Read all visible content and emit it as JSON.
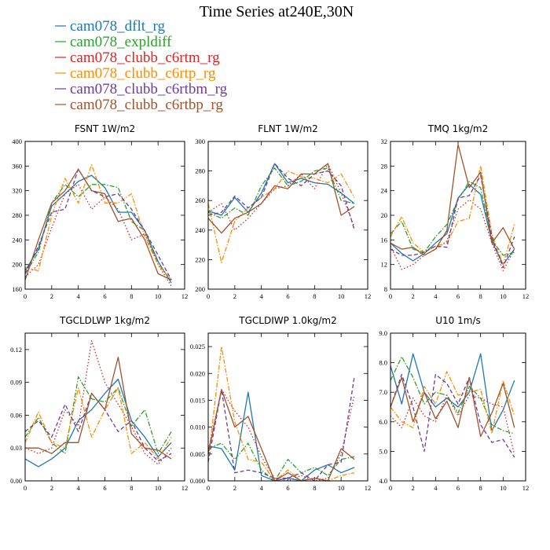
{
  "figure_title": "Time Series at240E,30N",
  "legend": [
    {
      "name": "cam078_dflt_rg",
      "color": "#1f77b4",
      "dash": "solid"
    },
    {
      "name": "cam078_expldiff",
      "color": "#2ca02c",
      "dash": "dashdot"
    },
    {
      "name": "cam078_clubb_c6rtm_rg",
      "color": "#d62728",
      "dash": "dot"
    },
    {
      "name": "cam078_clubb_c6rtp_rg",
      "color": "#ff8c00",
      "dash": "dashdot"
    },
    {
      "name": "cam078_clubb_c6rtbm_rg",
      "color": "#6a3d9a",
      "dash": "dash"
    },
    {
      "name": "cam078_clubb_c6rtbp_rg",
      "color": "#a0522d",
      "dash": "solid"
    }
  ],
  "chart_data": [
    {
      "type": "line",
      "title": "FSNT  1W/m2",
      "xlim": [
        0,
        12
      ],
      "ylim": [
        160,
        400
      ],
      "xticks": [
        0,
        2,
        4,
        6,
        8,
        10,
        12
      ],
      "yticks": [
        160,
        200,
        240,
        280,
        320,
        360,
        400
      ],
      "ytick_labels": [
        "160",
        "200",
        "240",
        "280",
        "320",
        "360",
        "400"
      ],
      "x": [
        0,
        1,
        2,
        3,
        4,
        5,
        6,
        7,
        8,
        9,
        10,
        11
      ],
      "series": [
        {
          "name": "cam078_dflt_rg",
          "values": [
            190,
            225,
            295,
            315,
            335,
            345,
            325,
            285,
            285,
            255,
            205,
            170
          ]
        },
        {
          "name": "cam078_expldiff",
          "values": [
            185,
            220,
            300,
            330,
            310,
            330,
            330,
            325,
            270,
            255,
            200,
            175
          ]
        },
        {
          "name": "cam078_clubb_c6rtm_rg",
          "values": [
            180,
            200,
            260,
            315,
            330,
            290,
            310,
            290,
            240,
            250,
            200,
            165
          ]
        },
        {
          "name": "cam078_clubb_c6rtp_rg",
          "values": [
            195,
            190,
            280,
            340,
            300,
            362,
            300,
            300,
            315,
            245,
            200,
            175
          ]
        },
        {
          "name": "cam078_clubb_c6rtbm_rg",
          "values": [
            185,
            230,
            285,
            290,
            355,
            320,
            310,
            315,
            290,
            255,
            215,
            175
          ]
        },
        {
          "name": "cam078_clubb_c6rtbp_rg",
          "values": [
            175,
            240,
            300,
            320,
            355,
            320,
            315,
            270,
            275,
            240,
            185,
            175
          ]
        }
      ]
    },
    {
      "type": "line",
      "title": "FLNT  1W/m2",
      "xlim": [
        0,
        12
      ],
      "ylim": [
        200,
        300
      ],
      "xticks": [
        0,
        2,
        4,
        6,
        8,
        10,
        12
      ],
      "yticks": [
        200,
        220,
        240,
        260,
        280,
        300
      ],
      "ytick_labels": [
        "200",
        "220",
        "240",
        "260",
        "280",
        "300"
      ],
      "x": [
        0,
        1,
        2,
        3,
        4,
        5,
        6,
        7,
        8,
        9,
        10,
        11
      ],
      "series": [
        {
          "name": "cam078_dflt_rg",
          "values": [
            253,
            250,
            262,
            252,
            265,
            285,
            272,
            275,
            272,
            271,
            265,
            258
          ]
        },
        {
          "name": "cam078_expldiff",
          "values": [
            252,
            248,
            255,
            250,
            270,
            282,
            270,
            273,
            280,
            282,
            260,
            258
          ]
        },
        {
          "name": "cam078_clubb_c6rtm_rg",
          "values": [
            252,
            258,
            240,
            248,
            258,
            268,
            270,
            278,
            268,
            285,
            265,
            242
          ]
        },
        {
          "name": "cam078_clubb_c6rtp_rg",
          "values": [
            258,
            218,
            246,
            255,
            262,
            268,
            280,
            276,
            275,
            272,
            278,
            262
          ]
        },
        {
          "name": "cam078_clubb_c6rtbm_rg",
          "values": [
            250,
            252,
            263,
            255,
            262,
            285,
            275,
            270,
            278,
            280,
            270,
            240
          ]
        },
        {
          "name": "cam078_clubb_c6rtbp_rg",
          "values": [
            248,
            238,
            248,
            252,
            258,
            270,
            268,
            278,
            278,
            285,
            250,
            256
          ]
        }
      ]
    },
    {
      "type": "line",
      "title": "TMQ  1kg/m2",
      "xlim": [
        0,
        12
      ],
      "ylim": [
        8,
        32
      ],
      "xticks": [
        0,
        2,
        4,
        6,
        8,
        10,
        12
      ],
      "yticks": [
        8,
        12,
        16,
        20,
        24,
        28,
        32
      ],
      "ytick_labels": [
        "8",
        "12",
        "16",
        "20",
        "24",
        "28",
        "32"
      ],
      "x": [
        0,
        1,
        2,
        3,
        4,
        5,
        6,
        7,
        8,
        9,
        10,
        11
      ],
      "series": [
        {
          "name": "cam078_dflt_rg",
          "values": [
            15.5,
            13.8,
            12.6,
            13.8,
            15.5,
            17.0,
            22.8,
            25.0,
            23.4,
            15.8,
            12.0,
            14.5
          ]
        },
        {
          "name": "cam078_expldiff",
          "values": [
            17.0,
            19.0,
            14.5,
            14.0,
            16.5,
            18.5,
            22.5,
            25.5,
            24.5,
            16.0,
            13.5,
            14.0
          ]
        },
        {
          "name": "cam078_clubb_c6rtm_rg",
          "values": [
            15.0,
            11.2,
            12.0,
            13.5,
            14.5,
            15.8,
            21.0,
            22.5,
            21.0,
            15.5,
            11.0,
            14.5
          ]
        },
        {
          "name": "cam078_clubb_c6rtp_rg",
          "values": [
            16.5,
            19.8,
            15.5,
            14.0,
            15.0,
            15.5,
            19.0,
            19.5,
            28.0,
            17.0,
            12.0,
            18.5
          ]
        },
        {
          "name": "cam078_clubb_c6rtbm_rg",
          "values": [
            14.5,
            13.5,
            13.5,
            14.0,
            15.0,
            14.8,
            22.8,
            23.2,
            26.5,
            16.5,
            11.5,
            16.5
          ]
        },
        {
          "name": "cam078_clubb_c6rtbp_rg",
          "values": [
            15.5,
            14.5,
            14.8,
            13.5,
            14.5,
            17.5,
            31.5,
            24.5,
            27.0,
            15.5,
            18.0,
            14.5
          ]
        }
      ]
    },
    {
      "type": "line",
      "title": "TGCLDLWP  1kg/m2",
      "xlim": [
        0,
        12
      ],
      "ylim": [
        0,
        0.135
      ],
      "xticks": [
        0,
        2,
        4,
        6,
        8,
        10,
        12
      ],
      "yticks": [
        0,
        0.03,
        0.06,
        0.09,
        0.12
      ],
      "ytick_labels": [
        "0.00",
        "0.03",
        "0.06",
        "0.09",
        "0.12"
      ],
      "x": [
        0,
        1,
        2,
        3,
        4,
        5,
        6,
        7,
        8,
        9,
        10,
        11
      ],
      "series": [
        {
          "name": "cam078_dflt_rg",
          "values": [
            0.02,
            0.013,
            0.02,
            0.03,
            0.055,
            0.065,
            0.08,
            0.093,
            0.055,
            0.04,
            0.022,
            0.035
          ]
        },
        {
          "name": "cam078_expldiff",
          "values": [
            0.04,
            0.058,
            0.035,
            0.025,
            0.095,
            0.075,
            0.072,
            0.085,
            0.05,
            0.065,
            0.025,
            0.045
          ]
        },
        {
          "name": "cam078_clubb_c6rtm_rg",
          "values": [
            0.03,
            0.025,
            0.03,
            0.065,
            0.05,
            0.128,
            0.09,
            0.07,
            0.05,
            0.025,
            0.015,
            0.03
          ]
        },
        {
          "name": "cam078_clubb_c6rtp_rg",
          "values": [
            0.035,
            0.063,
            0.035,
            0.03,
            0.085,
            0.04,
            0.065,
            0.085,
            0.025,
            0.035,
            0.02,
            0.04
          ]
        },
        {
          "name": "cam078_clubb_c6rtbm_rg",
          "values": [
            0.045,
            0.055,
            0.04,
            0.07,
            0.045,
            0.08,
            0.065,
            0.045,
            0.055,
            0.03,
            0.018,
            0.025
          ]
        },
        {
          "name": "cam078_clubb_c6rtbp_rg",
          "values": [
            0.03,
            0.03,
            0.025,
            0.035,
            0.035,
            0.08,
            0.065,
            0.113,
            0.043,
            0.03,
            0.028,
            0.02
          ]
        }
      ]
    },
    {
      "type": "line",
      "title": "TGCLDIWP  1.0kg/m2",
      "xlim": [
        0,
        12
      ],
      "ylim": [
        0,
        0.0275
      ],
      "xticks": [
        0,
        2,
        4,
        6,
        8,
        10,
        12
      ],
      "yticks": [
        0,
        0.005,
        0.01,
        0.015,
        0.02,
        0.025
      ],
      "ytick_labels": [
        "0.000",
        "0.005",
        "0.010",
        "0.015",
        "0.020",
        "0.025"
      ],
      "x": [
        0,
        1,
        2,
        3,
        4,
        5,
        6,
        7,
        8,
        9,
        10,
        11
      ],
      "series": [
        {
          "name": "cam078_dflt_rg",
          "values": [
            0.0065,
            0.006,
            0.002,
            0.0165,
            0.001,
            0.0,
            0.0005,
            0.0,
            0.002,
            0.003,
            0.0015,
            0.0025
          ]
        },
        {
          "name": "cam078_expldiff",
          "values": [
            0.006,
            0.007,
            0.004,
            0.007,
            0.002,
            0.0,
            0.004,
            0.0015,
            0.0025,
            0.001,
            0.004,
            0.0045
          ]
        },
        {
          "name": "cam078_clubb_c6rtm_rg",
          "values": [
            0.0055,
            0.017,
            0.013,
            0.01,
            0.0045,
            0.0005,
            0.0,
            0.001,
            0.0,
            0.0005,
            0.005,
            0.016
          ]
        },
        {
          "name": "cam078_clubb_c6rtp_rg",
          "values": [
            0.004,
            0.025,
            0.011,
            0.004,
            0.0035,
            0.0,
            0.002,
            0.0,
            0.0005,
            0.0,
            0.001,
            0.0015
          ]
        },
        {
          "name": "cam078_clubb_c6rtbm_rg",
          "values": [
            0.0035,
            0.017,
            0.0015,
            0.002,
            0.0015,
            0.0005,
            0.0005,
            0.0015,
            0.0,
            0.003,
            0.0035,
            0.0195
          ]
        },
        {
          "name": "cam078_clubb_c6rtbp_rg",
          "values": [
            0.005,
            0.017,
            0.01,
            0.012,
            0.006,
            0.0,
            0.0015,
            0.0,
            0.0005,
            0.0,
            0.006,
            0.004
          ]
        }
      ]
    },
    {
      "type": "line",
      "title": "U10  1m/s",
      "xlim": [
        0,
        12
      ],
      "ylim": [
        4,
        9
      ],
      "xticks": [
        0,
        2,
        4,
        6,
        8,
        10,
        12
      ],
      "yticks": [
        4,
        5,
        6,
        7,
        8,
        9
      ],
      "ytick_labels": [
        "4.0",
        "5.0",
        "6.0",
        "7.0",
        "8.0",
        "9.0"
      ],
      "x": [
        0,
        1,
        2,
        3,
        4,
        5,
        6,
        7,
        8,
        9,
        10,
        11
      ],
      "series": [
        {
          "name": "cam078_dflt_rg",
          "values": [
            7.9,
            6.6,
            8.3,
            7.0,
            6.5,
            6.8,
            6.5,
            7.0,
            8.3,
            5.7,
            6.4,
            7.4
          ]
        },
        {
          "name": "cam078_expldiff",
          "values": [
            7.4,
            8.2,
            7.5,
            6.6,
            7.0,
            6.9,
            6.3,
            7.2,
            6.8,
            5.9,
            5.7,
            5.6
          ]
        },
        {
          "name": "cam078_clubb_c6rtm_rg",
          "values": [
            6.2,
            5.8,
            6.8,
            6.2,
            6.0,
            6.9,
            6.2,
            6.9,
            6.8,
            6.6,
            6.5,
            4.9
          ]
        },
        {
          "name": "cam078_clubb_c6rtp_rg",
          "values": [
            6.5,
            6.0,
            5.8,
            7.2,
            6.6,
            7.7,
            6.9,
            7.0,
            7.1,
            5.6,
            7.4,
            6.2
          ]
        },
        {
          "name": "cam078_clubb_c6rtbm_rg",
          "values": [
            6.5,
            7.6,
            6.5,
            5.0,
            7.6,
            7.3,
            6.6,
            7.5,
            5.9,
            5.3,
            5.4,
            4.8
          ]
        },
        {
          "name": "cam078_clubb_c6rtbp_rg",
          "values": [
            6.5,
            7.5,
            6.0,
            7.0,
            6.1,
            6.7,
            5.8,
            7.5,
            5.5,
            6.3,
            7.3,
            5.8
          ]
        }
      ]
    }
  ]
}
